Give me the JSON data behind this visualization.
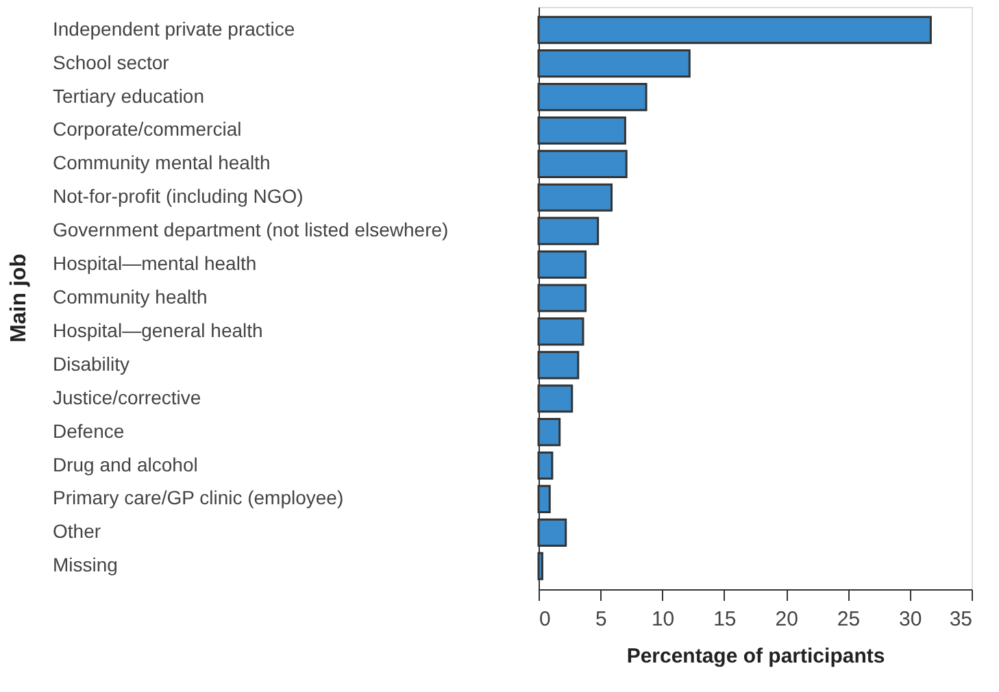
{
  "chart_data": {
    "type": "bar",
    "orientation": "horizontal",
    "xlabel": "Percentage of participants",
    "ylabel": "Main job",
    "categories": [
      "Independent private practice",
      "School sector",
      "Tertiary education",
      "Corporate/commercial",
      "Community mental health",
      "Not-for-profit (including NGO)",
      "Government department (not listed elsewhere)",
      "Hospital—mental health",
      "Community health",
      "Hospital—general health",
      "Disability",
      "Justice/corrective",
      "Defence",
      "Drug and alcohol",
      "Primary care/GP clinic (employee)",
      "Other",
      "Missing"
    ],
    "values": [
      31.7,
      12.2,
      8.7,
      7.0,
      7.1,
      5.9,
      4.8,
      3.8,
      3.8,
      3.6,
      3.2,
      2.7,
      1.7,
      1.1,
      0.9,
      2.2,
      0.3
    ],
    "color": "#3a8bcb",
    "xlim": [
      0,
      35
    ],
    "xticks": [
      0,
      5,
      10,
      15,
      20,
      25,
      30,
      35
    ],
    "grid": false
  }
}
